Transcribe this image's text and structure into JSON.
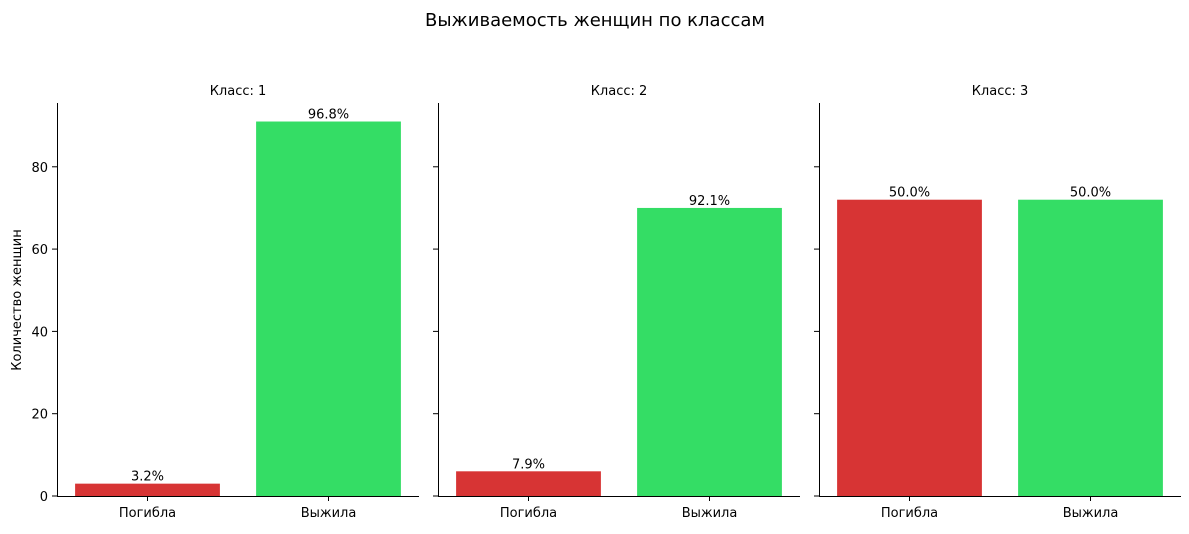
{
  "chart_data": {
    "type": "bar",
    "title": "Выживаемость женщин по классам",
    "ylabel": "Количество женщин",
    "xlabel": "",
    "ylim": [
      0,
      95.5
    ],
    "yticks": [
      0,
      20,
      40,
      60,
      80
    ],
    "categories": [
      "Погибла",
      "Выжила"
    ],
    "colors": [
      "#d73434",
      "#34dd65"
    ],
    "shared_y": true,
    "grid": false,
    "panels": [
      {
        "title": "Класс: 1",
        "values": [
          3,
          91
        ],
        "labels": [
          "3.2%",
          "96.8%"
        ]
      },
      {
        "title": "Класс: 2",
        "values": [
          6,
          70
        ],
        "labels": [
          "7.9%",
          "92.1%"
        ]
      },
      {
        "title": "Класс: 3",
        "values": [
          72,
          72
        ],
        "labels": [
          "50.0%",
          "50.0%"
        ]
      }
    ]
  }
}
